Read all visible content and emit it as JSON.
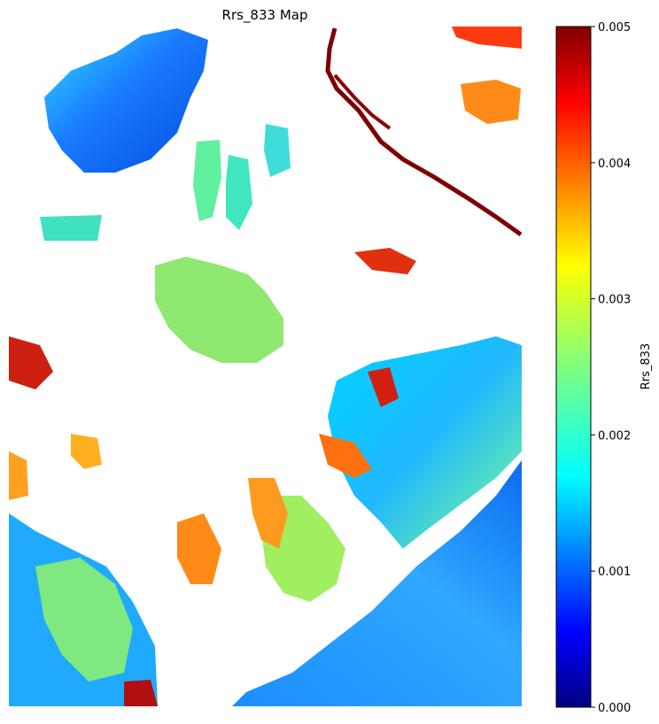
{
  "chart_data": {
    "type": "heatmap",
    "title": "Rrs_833 Map",
    "colorbar": {
      "label": "Rrs_833",
      "colormap": "jet",
      "range": [
        0,
        0.005
      ],
      "ticks": [
        0.0,
        0.001,
        0.002,
        0.003,
        0.004,
        0.005
      ],
      "tick_labels": [
        "0.000",
        "0.001",
        "0.002",
        "0.003",
        "0.004",
        "0.005"
      ],
      "position": "right"
    },
    "axes_visible": false,
    "background": "#ffffff",
    "colors": {
      "jet_stops": [
        "#00007f",
        "#0000ff",
        "#007fff",
        "#00ffff",
        "#7fff7f",
        "#ffff00",
        "#ff7f00",
        "#ff0000",
        "#7f0000"
      ]
    }
  }
}
